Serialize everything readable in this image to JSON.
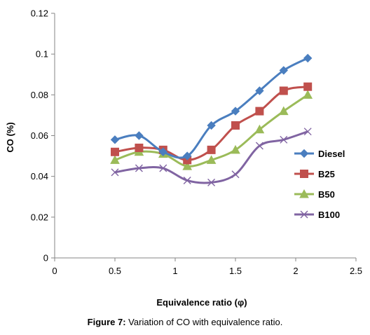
{
  "chart_data": {
    "type": "line",
    "title": "",
    "xlabel": "Equivalence ratio (φ)",
    "ylabel": "CO  (%)",
    "xlim": [
      0,
      2.5
    ],
    "ylim": [
      0,
      0.12
    ],
    "xticks": [
      0,
      0.5,
      1,
      1.5,
      2,
      2.5
    ],
    "yticks": [
      0,
      0.02,
      0.04,
      0.06,
      0.08,
      0.1,
      0.12
    ],
    "xtick_labels": [
      "0",
      "0.5",
      "1",
      "1.5",
      "2",
      "2.5"
    ],
    "ytick_labels": [
      "0",
      "0.02",
      "0.04",
      "0.06",
      "0.08",
      "0.1",
      "0.12"
    ],
    "grid": false,
    "legend_position": "right",
    "smooth": true,
    "series": [
      {
        "name": "Diesel",
        "color": "#4a7ebf",
        "marker": "diamond",
        "x": [
          0.5,
          0.7,
          0.9,
          1.1,
          1.3,
          1.5,
          1.7,
          1.9,
          2.1
        ],
        "y": [
          0.058,
          0.06,
          0.052,
          0.05,
          0.065,
          0.072,
          0.082,
          0.092,
          0.098
        ]
      },
      {
        "name": "B25",
        "color": "#c0504d",
        "marker": "square",
        "x": [
          0.5,
          0.7,
          0.9,
          1.1,
          1.3,
          1.5,
          1.7,
          1.9,
          2.1
        ],
        "y": [
          0.052,
          0.054,
          0.053,
          0.048,
          0.053,
          0.065,
          0.072,
          0.082,
          0.084
        ]
      },
      {
        "name": "B50",
        "color": "#9bbb59",
        "marker": "triangle",
        "x": [
          0.5,
          0.7,
          0.9,
          1.1,
          1.3,
          1.5,
          1.7,
          1.9,
          2.1
        ],
        "y": [
          0.048,
          0.052,
          0.051,
          0.045,
          0.048,
          0.053,
          0.063,
          0.072,
          0.08
        ]
      },
      {
        "name": "B100",
        "color": "#8064a2",
        "marker": "x",
        "x": [
          0.5,
          0.7,
          0.9,
          1.1,
          1.3,
          1.5,
          1.7,
          1.9,
          2.1
        ],
        "y": [
          0.042,
          0.044,
          0.044,
          0.038,
          0.037,
          0.041,
          0.055,
          0.058,
          0.062
        ]
      }
    ]
  },
  "caption": {
    "label": "Figure 7:",
    "text": " Variation of CO with equivalence ratio."
  }
}
